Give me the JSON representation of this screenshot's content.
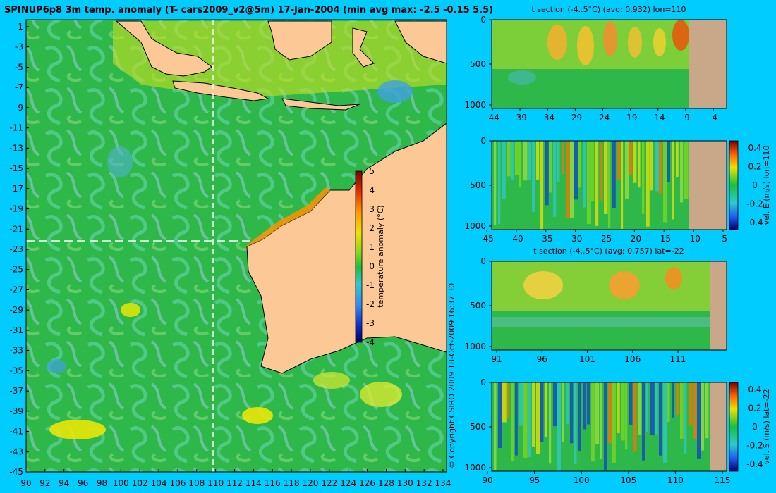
{
  "main_map": {
    "title": "SPINUP6p8 3m temp. anomaly (T- cars2009_v2@5m) 17-Jan-2004 (min avg max: -2.5 -0.15 5.5)",
    "lat_ticks": [
      "-1",
      "-3",
      "-5",
      "-7",
      "-9",
      "-11",
      "-13",
      "-15",
      "-17",
      "-19",
      "-21",
      "-23",
      "-25",
      "-27",
      "-29",
      "-31",
      "-33",
      "-35",
      "-37",
      "-39",
      "-41",
      "-43",
      "-45"
    ],
    "lon_ticks": [
      "90",
      "92",
      "94",
      "96",
      "98",
      "100",
      "102",
      "104",
      "106",
      "108",
      "110",
      "112",
      "114",
      "116",
      "118",
      "120",
      "122",
      "124",
      "126",
      "128",
      "130",
      "132",
      "134"
    ],
    "colorbar_label": "temperature anomaly (°C)",
    "colorbar_ticks": [
      "5",
      "4",
      "3",
      "2",
      "1",
      "0",
      "-1",
      "-2",
      "-3",
      "-4"
    ],
    "copyright": "© Copyright CSIRO 2009   18-Oct-2009 16:37:30"
  },
  "panels": {
    "p1": {
      "title": "t section (-4..5°C) (avg: 0.932) lon=110",
      "y_ticks": [
        "0",
        "500",
        "1000"
      ],
      "x_ticks": [
        "-44",
        "-39",
        "-34",
        "-29",
        "-24",
        "-19",
        "-14",
        "-9",
        "-4"
      ]
    },
    "p2": {
      "y_ticks": [
        "0",
        "500",
        "1000"
      ],
      "x_ticks": [
        "-45",
        "-40",
        "-35",
        "-30",
        "-25",
        "-20",
        "-15",
        "-10",
        "-5"
      ],
      "colorbar_label": "vel. E (m/s) lon=110",
      "colorbar_ticks": [
        "0.4",
        "0.2",
        "0",
        "-0.2",
        "-0.4"
      ]
    },
    "p3": {
      "title": "t section (-4..5°C) (avg: 0.757) lat=-22",
      "y_ticks": [
        "0",
        "500",
        "1000"
      ],
      "x_ticks": [
        "91",
        "96",
        "101",
        "106",
        "111"
      ]
    },
    "p4": {
      "y_ticks": [
        "0",
        "500",
        "1000"
      ],
      "x_ticks": [
        "90",
        "95",
        "100",
        "105",
        "110",
        "115"
      ],
      "colorbar_label": "vel. S (m/s) lat=-22",
      "colorbar_ticks": [
        "0.4",
        "0.2",
        "0",
        "-0.2",
        "-0.4"
      ]
    }
  },
  "colors": {
    "background": "#00ccff",
    "land": "#fcc896",
    "section_land": "#c8a888",
    "ocean_base": "#2fb84a",
    "grid_line": "#ffffff"
  }
}
